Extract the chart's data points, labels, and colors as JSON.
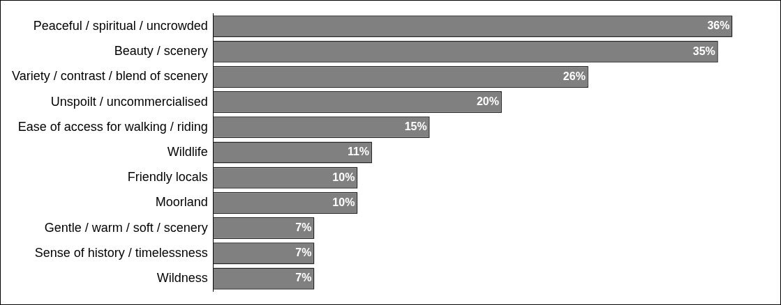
{
  "chart_data": {
    "type": "bar",
    "orientation": "horizontal",
    "categories": [
      "Peaceful / spiritual / uncrowded",
      "Beauty / scenery",
      "Variety / contrast / blend of scenery",
      "Unspoilt / uncommercialised",
      "Ease of access for walking / riding",
      "Wildlife",
      "Friendly locals",
      "Moorland",
      "Gentle / warm / soft / scenery",
      "Sense of history / timelessness",
      "Wildness"
    ],
    "values": [
      36,
      35,
      26,
      20,
      15,
      11,
      10,
      10,
      7,
      7,
      7
    ],
    "value_labels": [
      "36%",
      "35%",
      "26%",
      "20%",
      "15%",
      "11%",
      "10%",
      "10%",
      "7%",
      "7%",
      "7%"
    ],
    "color": "#808080",
    "legend": false
  }
}
